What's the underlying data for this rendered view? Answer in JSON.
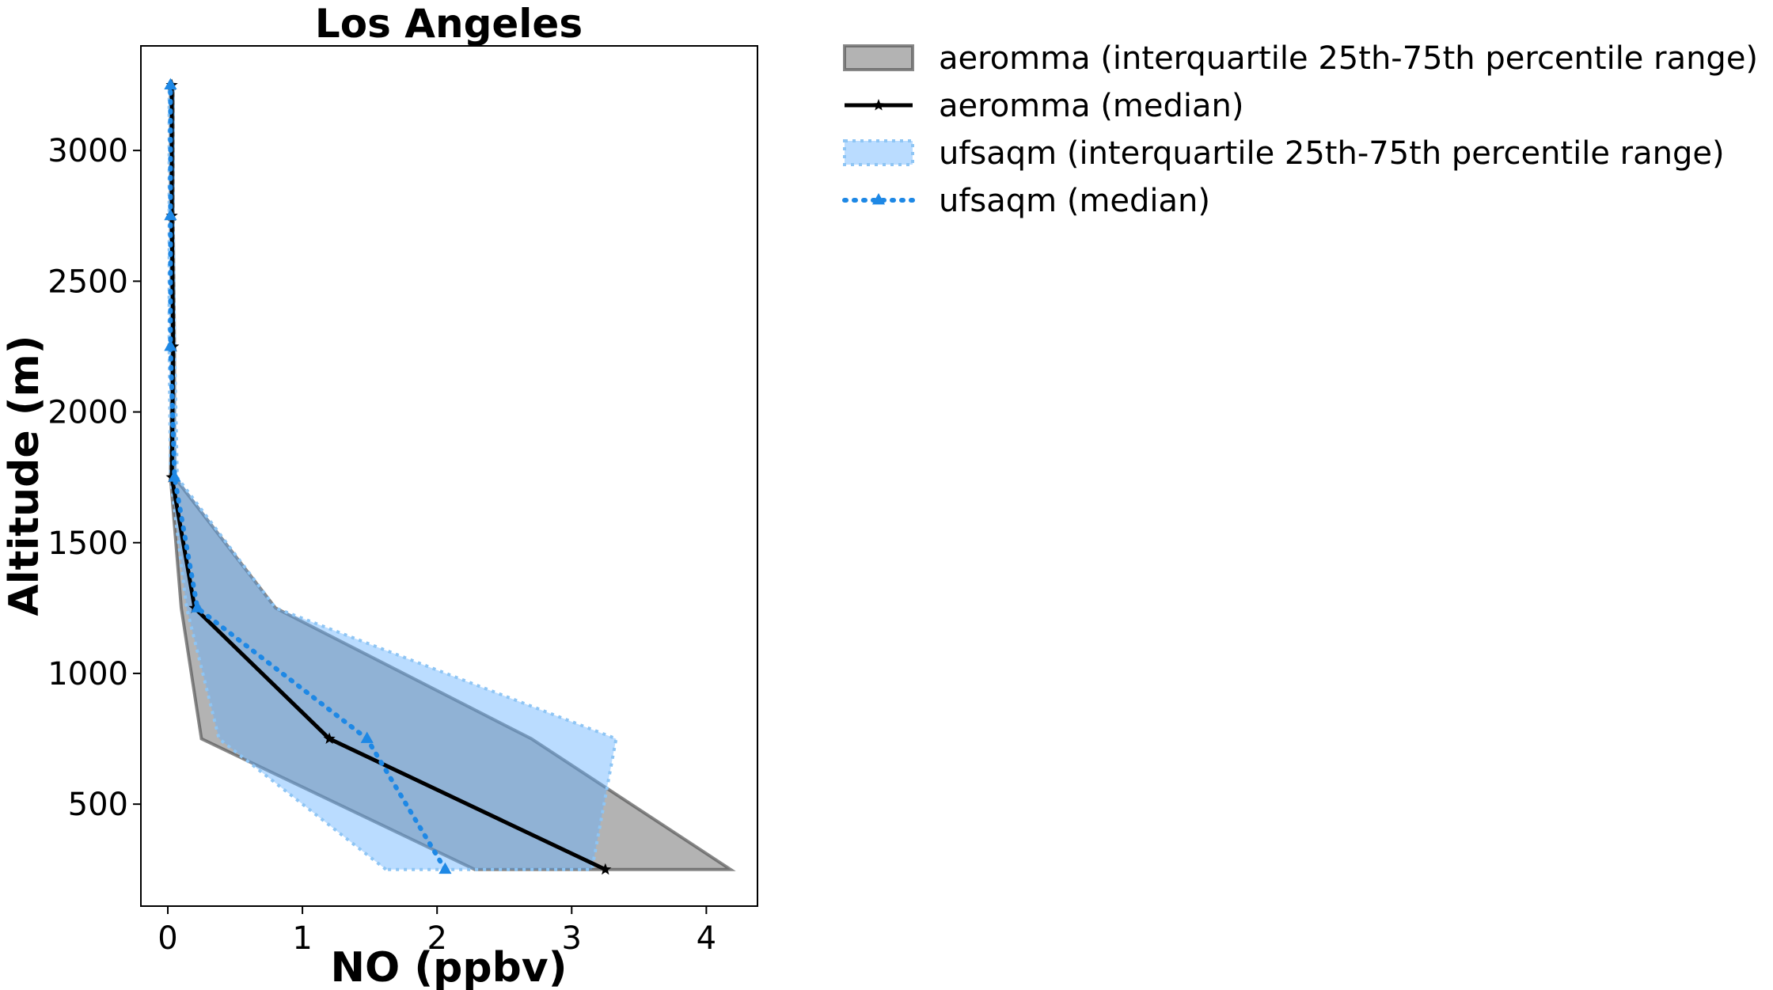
{
  "chart_data": {
    "type": "line",
    "title": "Los Angeles",
    "xlabel": "NO (ppbv)",
    "ylabel": "Altitude (m)",
    "xlim": [
      -0.2,
      4.38
    ],
    "ylim": [
      110,
      3400
    ],
    "xticks": [
      0,
      1,
      2,
      3,
      4
    ],
    "yticks": [
      500,
      1000,
      1500,
      2000,
      2500,
      3000
    ],
    "grid": false,
    "legend_position": "outside-right-top",
    "colors": {
      "aeromma_band_fill": "#808080",
      "aeromma_band_edge": "#555555",
      "aeromma_median": "#000000",
      "ufsaqm_band_fill": "#66b2ff",
      "ufsaqm_band_edge": "#8ec5f4",
      "ufsaqm_median": "#1e88e5"
    },
    "series": [
      {
        "name": "aeromma (interquartile 25th-75th percentile range)",
        "kind": "band",
        "altitude": [
          250,
          750,
          1250,
          1750,
          2250,
          2750,
          3250
        ],
        "p25": [
          2.28,
          0.25,
          0.1,
          0.02,
          0.03,
          0.02,
          0.02
        ],
        "p75": [
          4.18,
          2.7,
          0.8,
          0.05,
          0.05,
          0.04,
          0.04
        ]
      },
      {
        "name": "aeromma (median)",
        "kind": "line",
        "marker": "star",
        "altitude": [
          250,
          750,
          1250,
          1750,
          2250,
          2750,
          3250
        ],
        "values": [
          3.25,
          1.2,
          0.2,
          0.03,
          0.04,
          0.03,
          0.03
        ]
      },
      {
        "name": "ufsaqm (interquartile 25th-75th percentile range)",
        "kind": "band",
        "altitude": [
          250,
          750,
          1250,
          1750,
          2250,
          2750,
          3250
        ],
        "p25": [
          1.62,
          0.38,
          0.14,
          0.02,
          0.01,
          0.01,
          0.01
        ],
        "p75": [
          3.15,
          3.33,
          0.8,
          0.07,
          0.05,
          0.04,
          0.04
        ]
      },
      {
        "name": "ufsaqm (median)",
        "kind": "line",
        "marker": "triangle",
        "altitude": [
          250,
          750,
          1250,
          1750,
          2250,
          2750,
          3250
        ],
        "values": [
          2.06,
          1.48,
          0.22,
          0.05,
          0.02,
          0.02,
          0.02
        ]
      }
    ]
  }
}
